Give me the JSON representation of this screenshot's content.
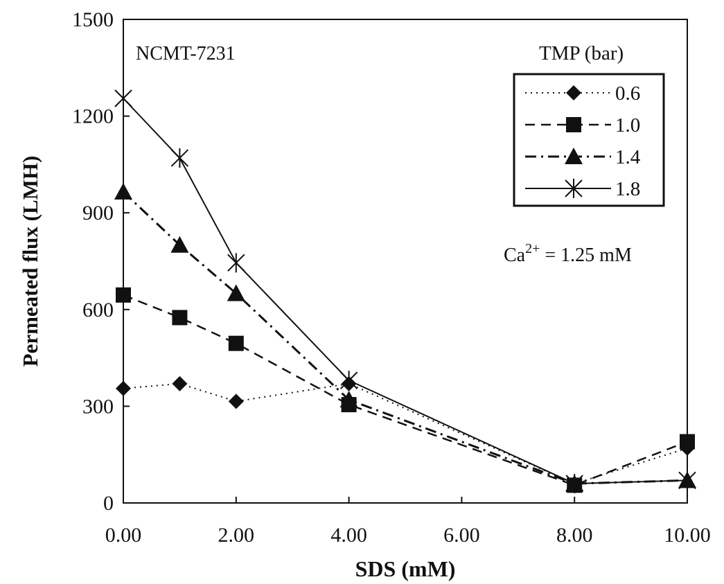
{
  "chart_data": {
    "type": "line",
    "xlabel": "SDS (mM)",
    "ylabel": "Permeated flux (LMH)",
    "xlim": [
      0,
      10
    ],
    "ylim": [
      0,
      1500
    ],
    "xticks": [
      "0.00",
      "2.00",
      "4.00",
      "6.00",
      "8.00",
      "10.00"
    ],
    "xtick_values": [
      0,
      2,
      4,
      6,
      8,
      10
    ],
    "yticks": [
      "0",
      "300",
      "600",
      "900",
      "1200",
      "1500"
    ],
    "ytick_values": [
      0,
      300,
      600,
      900,
      1200,
      1500
    ],
    "grid": false,
    "legend_title": "TMP (bar)",
    "legend_position": "top-right",
    "annotations": {
      "membrane": "NCMT-7231",
      "ca_base": "Ca",
      "ca_sup": "2+",
      "ca_value": " = 1.25 mM"
    },
    "x": [
      0,
      1,
      2,
      4,
      8,
      10
    ],
    "series": [
      {
        "name": "0.6",
        "marker": "diamond",
        "dash": "dotted",
        "values": [
          355,
          370,
          315,
          370,
          60,
          170
        ]
      },
      {
        "name": "1.0",
        "marker": "square",
        "dash": "dashed",
        "values": [
          645,
          575,
          495,
          305,
          55,
          190
        ]
      },
      {
        "name": "1.4",
        "marker": "triangle",
        "dash": "dashdot",
        "values": [
          965,
          800,
          650,
          320,
          60,
          70
        ]
      },
      {
        "name": "1.8",
        "marker": "asterisk",
        "dash": "solid",
        "values": [
          1255,
          1070,
          745,
          380,
          60,
          70
        ]
      }
    ]
  }
}
